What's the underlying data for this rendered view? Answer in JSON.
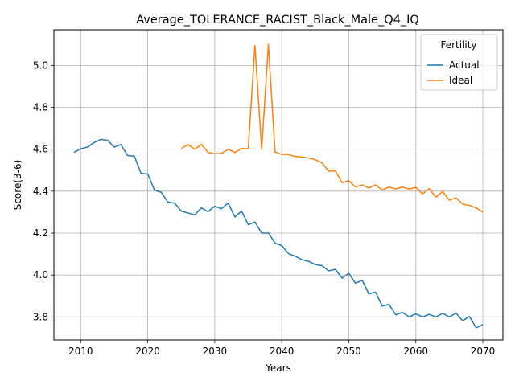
{
  "chart_data": {
    "type": "line",
    "title": "Average_TOLERANCE_RACIST_Black_Male_Q4_IQ",
    "xlabel": "Years",
    "ylabel": "Score(3-6)",
    "xlim": [
      2006.0,
      2073.0
    ],
    "ylim": [
      3.69,
      5.17
    ],
    "xticks": [
      2010,
      2020,
      2030,
      2040,
      2050,
      2060,
      2070
    ],
    "yticks": [
      3.8,
      4.0,
      4.2,
      4.4,
      4.6,
      4.8,
      5.0
    ],
    "xtick_labels": [
      "2010",
      "2020",
      "2030",
      "2040",
      "2050",
      "2060",
      "2070"
    ],
    "ytick_labels": [
      "3.8",
      "4.0",
      "4.2",
      "4.4",
      "4.6",
      "4.8",
      "5.0"
    ],
    "grid": true,
    "legend": {
      "title": "Fertility",
      "placement": "top-right"
    },
    "series": [
      {
        "name": "Actual",
        "color": "#1f77b4",
        "x": [
          2009,
          2010,
          2011,
          2012,
          2013,
          2014,
          2015,
          2016,
          2017,
          2018,
          2019,
          2020,
          2021,
          2022,
          2023,
          2024,
          2025,
          2026,
          2027,
          2028,
          2029,
          2030,
          2031,
          2032,
          2033,
          2034,
          2035,
          2036,
          2037,
          2038,
          2039,
          2040,
          2041,
          2042,
          2043,
          2044,
          2045,
          2046,
          2047,
          2048,
          2049,
          2050,
          2051,
          2052,
          2053,
          2054,
          2055,
          2056,
          2057,
          2058,
          2059,
          2060,
          2061,
          2062,
          2063,
          2064,
          2065,
          2066,
          2067,
          2068,
          2069,
          2070
        ],
        "values": [
          4.585,
          4.602,
          4.61,
          4.632,
          4.647,
          4.643,
          4.61,
          4.622,
          4.57,
          4.567,
          4.485,
          4.482,
          4.405,
          4.395,
          4.348,
          4.343,
          4.305,
          4.296,
          4.287,
          4.32,
          4.302,
          4.328,
          4.316,
          4.343,
          4.277,
          4.305,
          4.24,
          4.253,
          4.2,
          4.2,
          4.152,
          4.14,
          4.102,
          4.09,
          4.073,
          4.065,
          4.05,
          4.045,
          4.02,
          4.027,
          3.985,
          4.008,
          3.96,
          3.975,
          3.91,
          3.918,
          3.852,
          3.86,
          3.81,
          3.822,
          3.8,
          3.815,
          3.8,
          3.812,
          3.8,
          3.817,
          3.8,
          3.818,
          3.782,
          3.802,
          3.748,
          3.763
        ]
      },
      {
        "name": "Ideal",
        "color": "#ff7f0e",
        "x": [
          2025,
          2026,
          2027,
          2028,
          2029,
          2030,
          2031,
          2032,
          2033,
          2034,
          2035,
          2036,
          2037,
          2038,
          2039,
          2040,
          2041,
          2042,
          2043,
          2044,
          2045,
          2046,
          2047,
          2048,
          2049,
          2050,
          2051,
          2052,
          2053,
          2054,
          2055,
          2056,
          2057,
          2058,
          2059,
          2060,
          2061,
          2062,
          2063,
          2064,
          2065,
          2066,
          2067,
          2068,
          2069,
          2070
        ],
        "values": [
          4.603,
          4.622,
          4.6,
          4.623,
          4.585,
          4.578,
          4.58,
          4.6,
          4.585,
          4.603,
          4.603,
          5.095,
          4.598,
          5.1,
          4.587,
          4.575,
          4.575,
          4.565,
          4.563,
          4.558,
          4.55,
          4.535,
          4.495,
          4.497,
          4.44,
          4.45,
          4.42,
          4.43,
          4.415,
          4.43,
          4.405,
          4.42,
          4.41,
          4.42,
          4.41,
          4.418,
          4.387,
          4.412,
          4.372,
          4.398,
          4.357,
          4.368,
          4.338,
          4.332,
          4.32,
          4.3
        ]
      }
    ]
  }
}
